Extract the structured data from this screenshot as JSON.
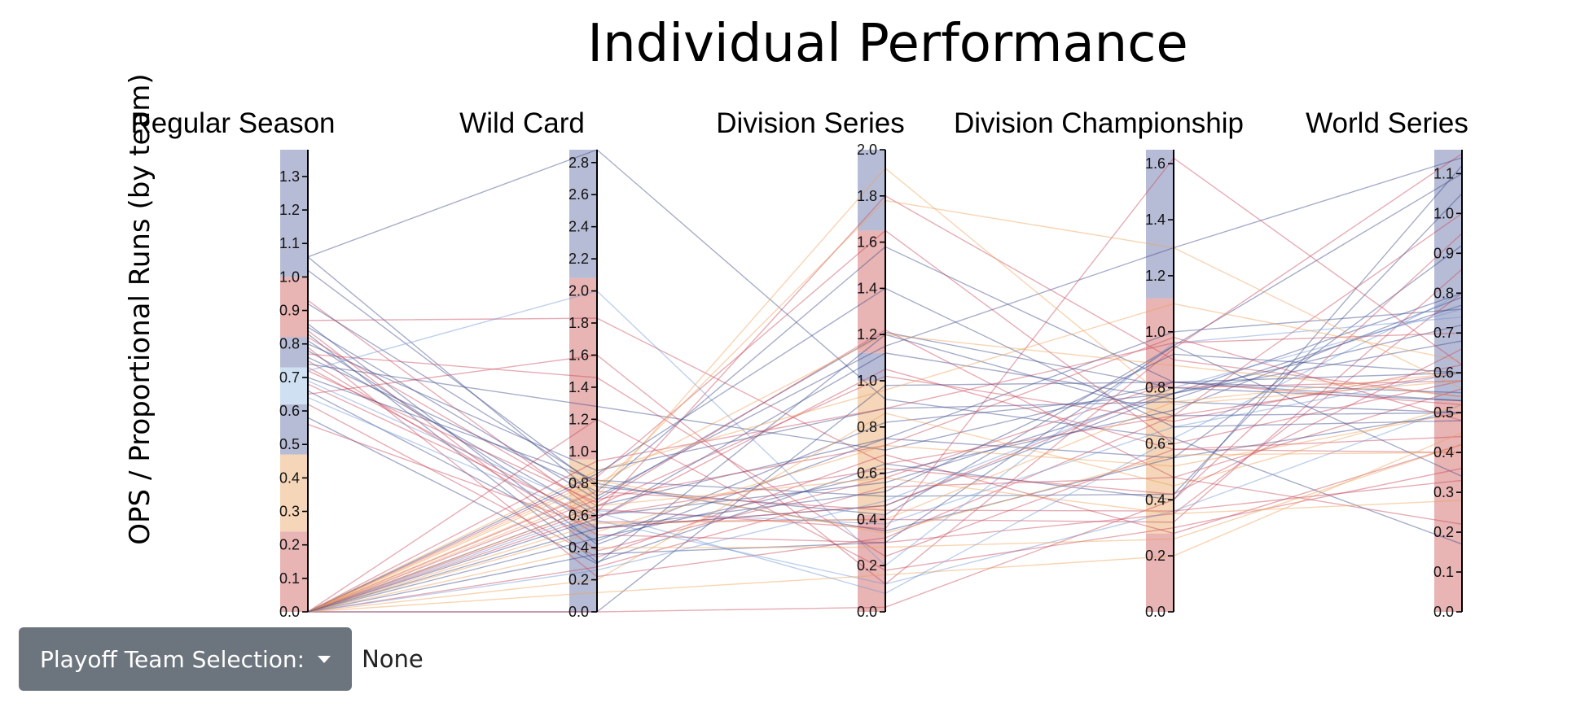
{
  "colors": {
    "blue_band": "#b7bcd6",
    "red_band": "#e8b4b4",
    "light_blue_band": "#cfe0f3",
    "orange_band": "#f5d6b8",
    "dark_blue_line": "#3b4a8a",
    "red_line": "#c8465a",
    "light_blue_line": "#6f97d4",
    "orange_line": "#ef9f55"
  },
  "controls": {
    "dropdown_label": "Playoff Team Selection:",
    "dropdown_icon": "caret-down-icon",
    "selected_value": "None"
  },
  "chart_data": {
    "type": "parallel-coordinates",
    "title": "Individual Performance",
    "ylabel": "OPS / Proportional Runs (by team)",
    "axes": [
      {
        "name": "Regular Season",
        "range": [
          0,
          1.38
        ],
        "ticks": [
          "0.0",
          "0.1",
          "0.2",
          "0.3",
          "0.4",
          "0.5",
          "0.6",
          "0.7",
          "0.8",
          "0.9",
          "1.0",
          "1.1",
          "1.2",
          "1.3"
        ],
        "tick_values": [
          0,
          0.1,
          0.2,
          0.3,
          0.4,
          0.5,
          0.6,
          0.7,
          0.8,
          0.9,
          1.0,
          1.1,
          1.2,
          1.3
        ],
        "bands": [
          {
            "from": 0,
            "to": 0.24,
            "color": "#e8b4b4"
          },
          {
            "from": 0.24,
            "to": 0.47,
            "color": "#f5d6b8"
          },
          {
            "from": 0.47,
            "to": 0.62,
            "color": "#b7bcd6"
          },
          {
            "from": 0.62,
            "to": 0.73,
            "color": "#cfe0f3"
          },
          {
            "from": 0.73,
            "to": 0.82,
            "color": "#b7bcd6"
          },
          {
            "from": 0.82,
            "to": 1.0,
            "color": "#e8b4b4"
          },
          {
            "from": 1.0,
            "to": 1.38,
            "color": "#b7bcd6"
          }
        ]
      },
      {
        "name": "Wild Card",
        "range": [
          0,
          2.88
        ],
        "ticks": [
          "0.0",
          "0.2",
          "0.4",
          "0.6",
          "0.8",
          "1.0",
          "1.2",
          "1.4",
          "1.6",
          "1.8",
          "2.0",
          "2.2",
          "2.4",
          "2.6",
          "2.8"
        ],
        "tick_values": [
          0,
          0.2,
          0.4,
          0.6,
          0.8,
          1.0,
          1.2,
          1.4,
          1.6,
          1.8,
          2.0,
          2.2,
          2.4,
          2.6,
          2.8
        ],
        "bands": [
          {
            "from": 0,
            "to": 0.55,
            "color": "#b7bcd6"
          },
          {
            "from": 0.55,
            "to": 0.95,
            "color": "#f5d6b8"
          },
          {
            "from": 0.95,
            "to": 2.08,
            "color": "#e8b4b4"
          },
          {
            "from": 2.08,
            "to": 2.88,
            "color": "#b7bcd6"
          }
        ]
      },
      {
        "name": "Division Series",
        "range": [
          0,
          2.0
        ],
        "ticks": [
          "0.0",
          "0.2",
          "0.4",
          "0.6",
          "0.8",
          "1.0",
          "1.2",
          "1.4",
          "1.6",
          "1.8",
          "2.0"
        ],
        "tick_values": [
          0,
          0.2,
          0.4,
          0.6,
          0.8,
          1.0,
          1.2,
          1.4,
          1.6,
          1.8,
          2.0
        ],
        "bands": [
          {
            "from": 0,
            "to": 0.42,
            "color": "#e8b4b4"
          },
          {
            "from": 0.42,
            "to": 1.0,
            "color": "#f5d6b8"
          },
          {
            "from": 1.0,
            "to": 1.12,
            "color": "#b7bcd6"
          },
          {
            "from": 1.12,
            "to": 1.65,
            "color": "#e8b4b4"
          },
          {
            "from": 1.65,
            "to": 2.0,
            "color": "#b7bcd6"
          }
        ]
      },
      {
        "name": "Division Championship",
        "range": [
          0,
          1.65
        ],
        "ticks": [
          "0.0",
          "0.2",
          "0.4",
          "0.6",
          "0.8",
          "1.0",
          "1.2",
          "1.4",
          "1.6"
        ],
        "tick_values": [
          0,
          0.2,
          0.4,
          0.6,
          0.8,
          1.0,
          1.2,
          1.4,
          1.6
        ],
        "bands": [
          {
            "from": 0,
            "to": 0.28,
            "color": "#e8b4b4"
          },
          {
            "from": 0.28,
            "to": 0.8,
            "color": "#f5d6b8"
          },
          {
            "from": 0.8,
            "to": 1.12,
            "color": "#e8b4b4"
          },
          {
            "from": 1.12,
            "to": 1.65,
            "color": "#b7bcd6"
          }
        ]
      },
      {
        "name": "World Series",
        "range": [
          0,
          1.16
        ],
        "ticks": [
          "0.0",
          "0.1",
          "0.2",
          "0.3",
          "0.4",
          "0.5",
          "0.6",
          "0.7",
          "0.8",
          "0.9",
          "1.0",
          "1.1"
        ],
        "tick_values": [
          0,
          0.1,
          0.2,
          0.3,
          0.4,
          0.5,
          0.6,
          0.7,
          0.8,
          0.9,
          1.0,
          1.1
        ],
        "bands": [
          {
            "from": 0,
            "to": 0.53,
            "color": "#e8b4b4"
          },
          {
            "from": 0.53,
            "to": 1.16,
            "color": "#b7bcd6"
          }
        ]
      }
    ],
    "lines": [
      {
        "color": "#3b4a8a",
        "values": [
          1.06,
          2.88,
          0.92,
          0.62,
          0.17
        ]
      },
      {
        "color": "#3b4a8a",
        "values": [
          1.06,
          0.72,
          1.15,
          1.3,
          1.14
        ]
      },
      {
        "color": "#3b4a8a",
        "values": [
          1.02,
          0.78,
          0.42,
          0.95,
          1.1
        ]
      },
      {
        "color": "#c8465a",
        "values": [
          0.93,
          0.62,
          1.8,
          0.9,
          0.54
        ]
      },
      {
        "color": "#3b4a8a",
        "values": [
          0.92,
          0.8,
          0.35,
          0.55,
          0.92
        ]
      },
      {
        "color": "#c8465a",
        "values": [
          0.87,
          1.83,
          0.64,
          0.7,
          0.6
        ]
      },
      {
        "color": "#3b4a8a",
        "values": [
          0.86,
          0.42,
          0.75,
          1.0,
          0.76
        ]
      },
      {
        "color": "#3b4a8a",
        "values": [
          0.85,
          0.7,
          1.21,
          0.8,
          0.53
        ]
      },
      {
        "color": "#c8465a",
        "values": [
          0.84,
          0.38,
          0.58,
          0.82,
          0.52
        ]
      },
      {
        "color": "#3b4a8a",
        "values": [
          0.83,
          0.31,
          0.64,
          0.4,
          1.12
        ]
      },
      {
        "color": "#c8465a",
        "values": [
          0.82,
          0.66,
          1.02,
          0.68,
          0.62
        ]
      },
      {
        "color": "#3b4a8a",
        "values": [
          0.81,
          0.52,
          0.46,
          0.78,
          0.8
        ]
      },
      {
        "color": "#3b4a8a",
        "values": [
          0.8,
          0.88,
          0.88,
          0.75,
          0.5
        ]
      },
      {
        "color": "#c8465a",
        "values": [
          0.79,
          0.22,
          0.32,
          0.7,
          1.0
        ]
      },
      {
        "color": "#3b4a8a",
        "values": [
          0.78,
          0.6,
          0.56,
          0.78,
          0.72
        ]
      },
      {
        "color": "#c8465a",
        "values": [
          0.77,
          1.46,
          0.24,
          0.58,
          0.4
        ]
      },
      {
        "color": "#3b4a8a",
        "values": [
          0.76,
          0.75,
          1.58,
          0.82,
          0.53
        ]
      },
      {
        "color": "#c8465a",
        "values": [
          0.75,
          0.48,
          0.3,
          0.35,
          0.8
        ]
      },
      {
        "color": "#3b4a8a",
        "values": [
          0.74,
          1.28,
          0.7,
          0.82,
          0.55
        ]
      },
      {
        "color": "#c8465a",
        "values": [
          0.73,
          0.56,
          0.4,
          0.32,
          0.86
        ]
      },
      {
        "color": "#6f97d4",
        "values": [
          0.72,
          2.0,
          0.2,
          0.96,
          0.74
        ]
      },
      {
        "color": "#c8465a",
        "values": [
          0.72,
          0.68,
          1.22,
          0.48,
          0.56
        ]
      },
      {
        "color": "#3b4a8a",
        "values": [
          0.7,
          0.82,
          0.5,
          0.42,
          1.05
        ]
      },
      {
        "color": "#6f97d4",
        "values": [
          0.69,
          0.63,
          0.38,
          0.66,
          0.6
        ]
      },
      {
        "color": "#c8465a",
        "values": [
          0.68,
          0.58,
          1.05,
          0.58,
          0.44
        ]
      },
      {
        "color": "#3b4a8a",
        "values": [
          0.66,
          0.44,
          0.82,
          0.78,
          0.68
        ]
      },
      {
        "color": "#c8465a",
        "values": [
          0.65,
          1.6,
          0.12,
          0.94,
          1.15
        ]
      },
      {
        "color": "#6f97d4",
        "values": [
          0.64,
          0.57,
          0.12,
          0.36,
          0.52
        ]
      },
      {
        "color": "#c8465a",
        "values": [
          0.62,
          0.34,
          0.68,
          0.28,
          0.42
        ]
      },
      {
        "color": "#3b4a8a",
        "values": [
          0.58,
          0.3,
          1.2,
          0.7,
          0.5
        ]
      },
      {
        "color": "#c8465a",
        "values": [
          0.56,
          0.52,
          0.46,
          0.8,
          0.58
        ]
      },
      {
        "color": "#3b4a8a",
        "values": [
          0.0,
          0.0,
          0.98,
          0.82,
          0.6
        ]
      },
      {
        "color": "#3b4a8a",
        "values": [
          0.0,
          0.66,
          0.75,
          0.55,
          0.5
        ]
      },
      {
        "color": "#3b4a8a",
        "values": [
          0.0,
          0.58,
          1.12,
          0.76,
          0.77
        ]
      },
      {
        "color": "#3b4a8a",
        "values": [
          0.0,
          0.46,
          0.6,
          0.72,
          0.79
        ]
      },
      {
        "color": "#3b4a8a",
        "values": [
          0.0,
          0.36,
          0.3,
          0.95,
          0.34
        ]
      },
      {
        "color": "#c8465a",
        "values": [
          0.0,
          0.94,
          0.88,
          0.96,
          0.7
        ]
      },
      {
        "color": "#c8465a",
        "values": [
          0.0,
          0.75,
          0.44,
          0.36,
          0.33
        ]
      },
      {
        "color": "#c8465a",
        "values": [
          0.0,
          0.84,
          1.65,
          0.6,
          0.58
        ]
      },
      {
        "color": "#c8465a",
        "values": [
          0.0,
          0.28,
          0.54,
          0.48,
          0.22
        ]
      },
      {
        "color": "#c8465a",
        "values": [
          0.0,
          0.64,
          0.36,
          1.62,
          0.62
        ]
      },
      {
        "color": "#c8465a",
        "values": [
          0.0,
          0.0,
          0.02,
          0.4,
          0.95
        ]
      },
      {
        "color": "#c8465a",
        "values": [
          0.0,
          1.2,
          0.18,
          0.3,
          0.36
        ]
      },
      {
        "color": "#c8465a",
        "values": [
          0.0,
          0.7,
          0.72,
          0.98,
          0.48
        ]
      },
      {
        "color": "#ef9f55",
        "values": [
          0.0,
          0.76,
          1.78,
          1.3,
          0.56
        ]
      },
      {
        "color": "#ef9f55",
        "values": [
          0.0,
          0.2,
          0.86,
          0.45,
          0.52
        ]
      },
      {
        "color": "#ef9f55",
        "values": [
          0.0,
          0.55,
          0.4,
          0.75,
          0.6
        ]
      },
      {
        "color": "#ef9f55",
        "values": [
          0.0,
          0.8,
          1.2,
          0.88,
          0.54
        ]
      },
      {
        "color": "#ef9f55",
        "values": [
          0.0,
          0.66,
          0.58,
          0.35,
          0.28
        ]
      },
      {
        "color": "#ef9f55",
        "values": [
          0.0,
          0.4,
          0.28,
          0.26,
          0.42
        ]
      },
      {
        "color": "#ef9f55",
        "values": [
          0.0,
          0.88,
          0.96,
          1.1,
          0.63
        ]
      },
      {
        "color": "#ef9f55",
        "values": [
          0.0,
          0.5,
          0.72,
          0.52,
          0.5
        ]
      },
      {
        "color": "#ef9f55",
        "values": [
          0.0,
          0.12,
          0.16,
          0.2,
          0.45
        ]
      },
      {
        "color": "#ef9f55",
        "values": [
          0.0,
          0.72,
          1.92,
          0.74,
          0.58
        ]
      },
      {
        "color": "#6f97d4",
        "values": [
          0.0,
          0.62,
          0.08,
          0.62,
          0.8
        ]
      },
      {
        "color": "#6f97d4",
        "values": [
          0.0,
          0.26,
          0.48,
          0.8,
          0.76
        ]
      },
      {
        "color": "#3b4a8a",
        "values": [
          0.0,
          0.86,
          1.4,
          0.66,
          0.48
        ]
      },
      {
        "color": "#c8465a",
        "values": [
          0.0,
          0.6,
          0.62,
          0.42,
          0.66
        ]
      },
      {
        "color": "#ef9f55",
        "values": [
          0.0,
          0.82,
          0.34,
          0.56,
          0.4
        ]
      },
      {
        "color": "#3b4a8a",
        "values": [
          0.0,
          0.52,
          0.52,
          0.92,
          0.6
        ]
      }
    ]
  }
}
